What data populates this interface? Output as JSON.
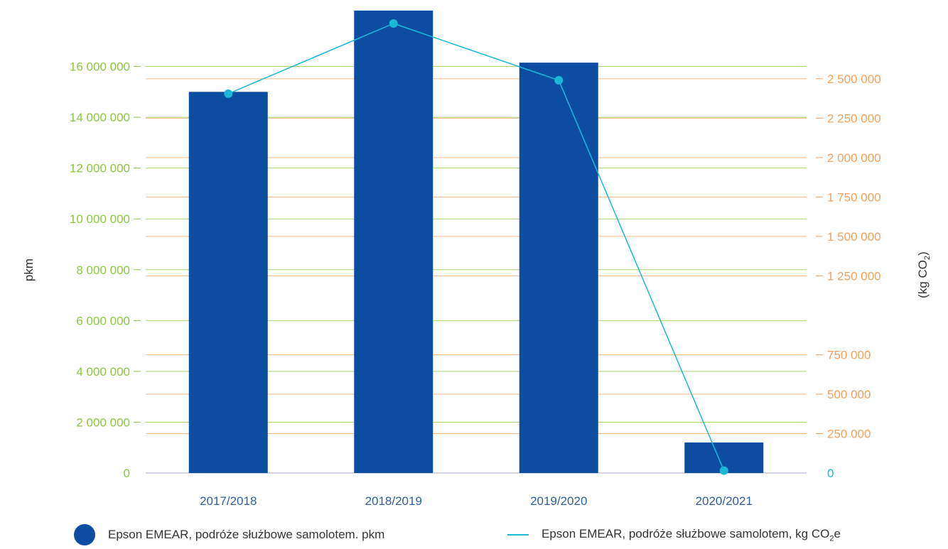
{
  "chart_data": {
    "type": "bar",
    "categories": [
      "2017/2018",
      "2018/2019",
      "2019/2020",
      "2020/2021"
    ],
    "series": [
      {
        "name": "Epson EMEAR, podróże służbowe samolotem. pkm",
        "type": "bar",
        "axis": "left",
        "values": [
          15000000,
          18200000,
          16150000,
          1200000
        ]
      },
      {
        "name": "Epson EMEAR, podróże służbowe samolotem, kg CO",
        "name_subscript": "2",
        "name_suffix": "e",
        "type": "line",
        "axis": "right",
        "values": [
          2405000,
          2850000,
          2490000,
          15000
        ]
      }
    ],
    "y_left": {
      "label": "pkm",
      "range": [
        0,
        18000000
      ],
      "ticks": [
        0,
        2000000,
        4000000,
        6000000,
        8000000,
        10000000,
        12000000,
        14000000,
        16000000
      ],
      "tick_labels": [
        "0",
        "2 000 000",
        "4 000 000",
        "6 000 000",
        "8 000 000",
        "10 000 000",
        "12 000 000",
        "14 000 000",
        "16 000 000"
      ]
    },
    "y_right": {
      "label": "(kg CO",
      "label_subscript": "2",
      "label_suffix": ")",
      "range": [
        0,
        2900000
      ],
      "ticks": [
        0,
        250000,
        500000,
        750000,
        1250000,
        1500000,
        1750000,
        2000000,
        2250000,
        2500000
      ],
      "tick_labels": [
        "0",
        "250 000",
        "500 000",
        "750 000",
        "1 250 000",
        "1 500 000",
        "1 750 000",
        "2 000 000",
        "2 250 000",
        "2 500 000"
      ]
    },
    "grid": true,
    "legend": "bottom",
    "colors": {
      "bar": "#0c4da2",
      "line": "#1cb8d8",
      "left_axis": "#8cc63f",
      "right_axis": "#f5a05a",
      "category_labels": "#2f5f9e",
      "zero_axis": "#c9c3e6"
    }
  }
}
